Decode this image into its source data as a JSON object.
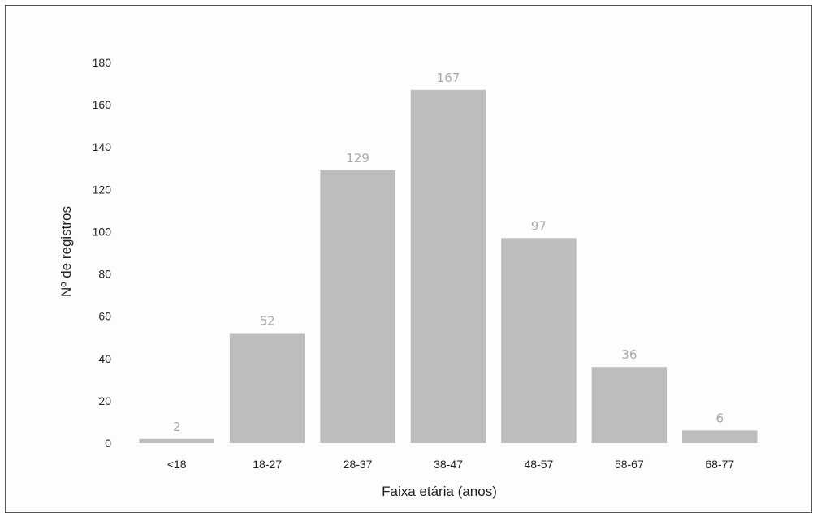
{
  "chart_data": {
    "type": "bar",
    "categories": [
      "<18",
      "18-27",
      "28-37",
      "38-47",
      "48-57",
      "58-67",
      "68-77"
    ],
    "values": [
      2,
      52,
      129,
      167,
      97,
      36,
      6
    ],
    "title": "",
    "xlabel": "Faixa etária (anos)",
    "ylabel": "Nº de registros",
    "ylim": [
      0,
      180
    ],
    "yticks": [
      0,
      20,
      40,
      60,
      80,
      100,
      120,
      140,
      160,
      180
    ],
    "grid": false,
    "legend": "none",
    "bar_color": "#bdbdbd",
    "label_color": "#a9a9a9"
  }
}
